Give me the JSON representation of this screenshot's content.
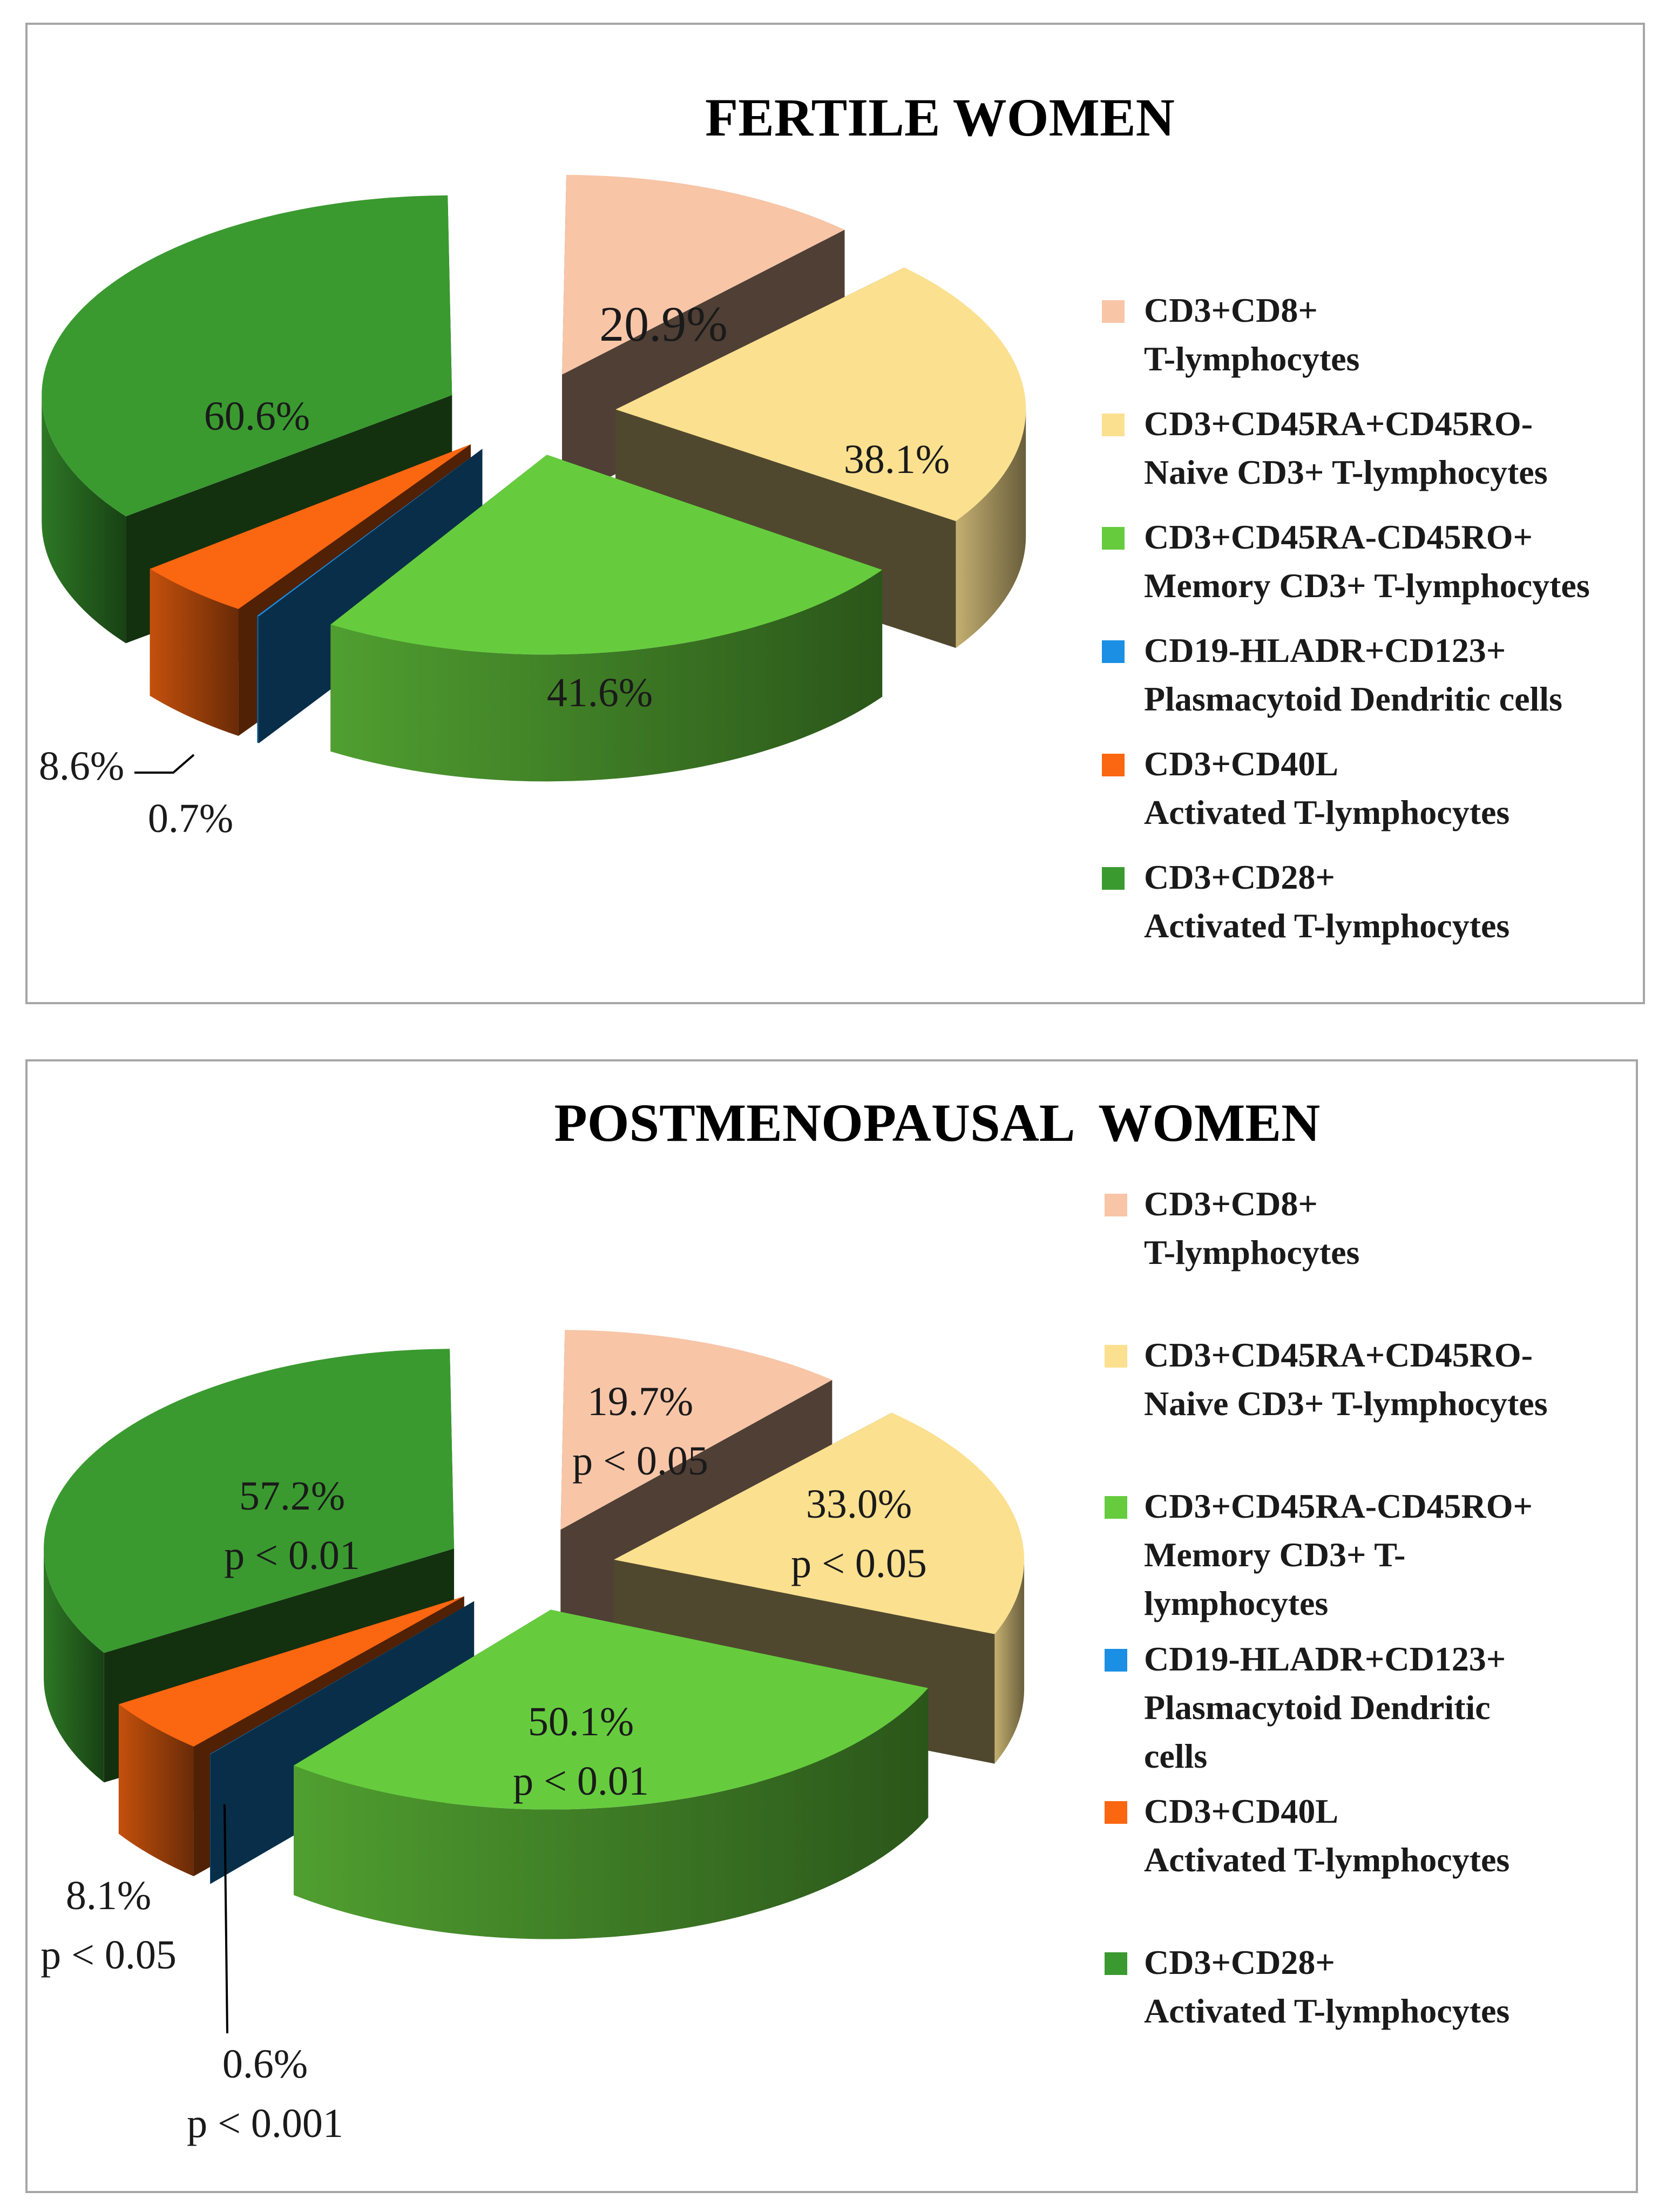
{
  "chart_data": [
    {
      "type": "pie",
      "title": "FERTILE WOMEN",
      "categories": [
        "CD3+CD8+ T-lymphocytes",
        "CD3+CD45RA+CD45RO- Naive CD3+ T-lymphocytes",
        "CD3+CD45RA-CD45RO+ Memory CD3+ T-lymphocytes",
        "CD19-HLADR+CD123+ Plasmacytoid Dendritic cells",
        "CD3+CD40L Activated T-lymphocytes",
        "CD3+CD28+ Activated T-lymphocytes"
      ],
      "values": [
        20.9,
        38.1,
        41.6,
        0.7,
        8.6,
        60.6
      ],
      "value_labels": [
        "20.9%",
        "38.1%",
        "41.6%",
        "0.7%",
        "8.6%",
        "60.6%"
      ],
      "p_labels": [
        "",
        "",
        "",
        "",
        "",
        ""
      ],
      "legend": [
        {
          "line1": "CD3+CD8+",
          "line2": "T-lymphocytes",
          "line3": ""
        },
        {
          "line1": "CD3+CD45RA+CD45RO-",
          "line2": "Naive CD3+ T-lymphocytes",
          "line3": ""
        },
        {
          "line1": "CD3+CD45RA-CD45RO+",
          "line2": "Memory CD3+ T-lymphocytes",
          "line3": ""
        },
        {
          "line1": "CD19-HLADR+CD123+",
          "line2": "Plasmacytoid Dendritic cells",
          "line3": ""
        },
        {
          "line1": "CD3+CD40L",
          "line2": "Activated T-lymphocytes",
          "line3": ""
        },
        {
          "line1": "CD3+CD28+",
          "line2": "Activated T-lymphocytes",
          "line3": ""
        }
      ],
      "legend_position": "right"
    },
    {
      "type": "pie",
      "title": "POSTMENOPAUSAL  WOMEN",
      "categories": [
        "CD3+CD8+ T-lymphocytes",
        "CD3+CD45RA+CD45RO- Naive CD3+ T-lymphocytes",
        "CD3+CD45RA-CD45RO+ Memory CD3+ T-lymphocytes",
        "CD19-HLADR+CD123+ Plasmacytoid Dendritic cells",
        "CD3+CD40L Activated T-lymphocytes",
        "CD3+CD28+ Activated T-lymphocytes"
      ],
      "values": [
        19.7,
        33.0,
        50.1,
        0.6,
        8.1,
        57.2
      ],
      "value_labels": [
        "19.7%",
        "33.0%",
        "50.1%",
        "0.6%",
        "8.1%",
        "57.2%"
      ],
      "p_labels": [
        "p < 0.05",
        "p < 0.05",
        "p < 0.01",
        "p < 0.001",
        "p < 0.05",
        "p < 0.01"
      ],
      "legend": [
        {
          "line1": "CD3+CD8+",
          "line2": "T-lymphocytes",
          "line3": ""
        },
        {
          "line1": "CD3+CD45RA+CD45RO-",
          "line2": "Naive CD3+ T-lymphocytes",
          "line3": ""
        },
        {
          "line1": "CD3+CD45RA-CD45RO+",
          "line2": "Memory CD3+ T-",
          "line3": "lymphocytes"
        },
        {
          "line1": "CD19-HLADR+CD123+",
          "line2": "Plasmacytoid Dendritic",
          "line3": "cells"
        },
        {
          "line1": "CD3+CD40L",
          "line2": "Activated T-lymphocytes",
          "line3": ""
        },
        {
          "line1": "CD3+CD28+",
          "line2": "Activated T-lymphocytes",
          "line3": ""
        }
      ],
      "legend_position": "right"
    }
  ],
  "colors": {
    "cd8": "#f8c5a7",
    "naive": "#fbe08f",
    "memory": "#66cc3e",
    "pdc": "#1a8fe3",
    "cd40l": "#fb6610",
    "cd28": "#3a9a30",
    "border": "#a6a6a6"
  }
}
